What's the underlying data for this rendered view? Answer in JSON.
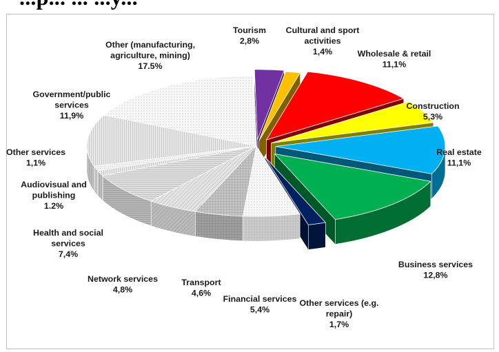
{
  "heading": "...p... ... ...y...",
  "chart_data": {
    "type": "pie",
    "title": "",
    "slices": [
      {
        "label": [
          "Tourism"
        ],
        "value_label": "2,8%",
        "value": 2.8,
        "color": "#7030a0"
      },
      {
        "label": [
          "Cultural and sport",
          "activities"
        ],
        "value_label": "1,4%",
        "value": 1.4,
        "color": "#ffc000"
      },
      {
        "label": [
          "Wholesale & retail"
        ],
        "value_label": "11,1%",
        "value": 11.1,
        "color": "#ff0000"
      },
      {
        "label": [
          "Construction"
        ],
        "value_label": "5,3%",
        "value": 5.3,
        "color": "#ffff00"
      },
      {
        "label": [
          "Real estate"
        ],
        "value_label": "11,1%",
        "value": 11.1,
        "color": "#00b0f0"
      },
      {
        "label": [
          "Business services"
        ],
        "value_label": "12,8%",
        "value": 12.8,
        "color": "#00b050"
      },
      {
        "label": [
          "Other services (e.g.",
          "repair)"
        ],
        "value_label": "1,7%",
        "value": 1.7,
        "color": "#002060"
      },
      {
        "label": [
          "Financial services"
        ],
        "value_label": "5,4%",
        "value": 5.4,
        "color": "#f2f2f2"
      },
      {
        "label": [
          "Transport"
        ],
        "value_label": "4,6%",
        "value": 4.6,
        "color": "#c8c8c8"
      },
      {
        "label": [
          "Network services"
        ],
        "value_label": "4,8%",
        "value": 4.8,
        "color": "#d9d9d9"
      },
      {
        "label": [
          "Health and social",
          "services"
        ],
        "value_label": "7,4%",
        "value": 7.4,
        "color": "#bfbfbf"
      },
      {
        "label": [
          "Audiovisual and",
          "publishing"
        ],
        "value_label": "1.2%",
        "value": 1.2,
        "color": "#e6e6e6"
      },
      {
        "label": [
          "Other services"
        ],
        "value_label": "1,1%",
        "value": 1.1,
        "color": "#ffffff"
      },
      {
        "label": [
          "Government/public",
          "services"
        ],
        "value_label": "11,9%",
        "value": 11.9,
        "color": "#d0d0d0"
      },
      {
        "label": [
          "Other (manufacturing,",
          "agriculture, mining)"
        ],
        "value_label": "17.5%",
        "value": 17.5,
        "color": "#eeeeee"
      }
    ]
  }
}
